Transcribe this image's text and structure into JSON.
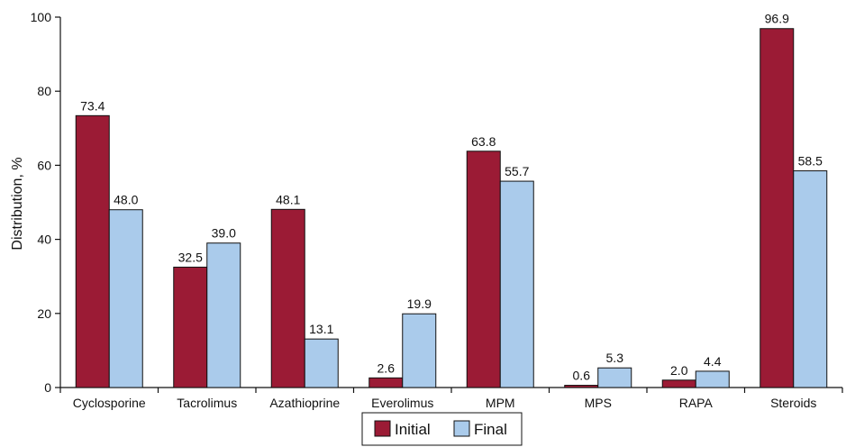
{
  "chart_data": {
    "type": "bar",
    "title": "",
    "xlabel": "",
    "ylabel": "Distribution, %",
    "ylim": [
      0,
      100
    ],
    "yticks": [
      0,
      20,
      40,
      60,
      80,
      100
    ],
    "categories": [
      "Cyclosporine",
      "Tacrolimus",
      "Azathioprine",
      "Everolimus",
      "MPM",
      "MPS",
      "RAPA",
      "Steroids"
    ],
    "series": [
      {
        "name": "Initial",
        "color": "#9b1b35",
        "values": [
          73.4,
          32.5,
          48.1,
          2.6,
          63.8,
          0.6,
          2.0,
          96.9
        ],
        "labels": [
          "73.4",
          "32.5",
          "48.1",
          "2.6",
          "63.8",
          "0.6",
          "2.0",
          "96.9"
        ]
      },
      {
        "name": "Final",
        "color": "#aacbeb",
        "values": [
          48.0,
          39.0,
          13.1,
          19.9,
          55.7,
          5.3,
          4.4,
          58.5
        ],
        "labels": [
          "48.0",
          "39.0",
          "13.1",
          "19.9",
          "55.7",
          "5.3",
          "4.4",
          "58.5"
        ]
      }
    ],
    "legend": {
      "position": "bottom-center"
    },
    "grid": false
  }
}
